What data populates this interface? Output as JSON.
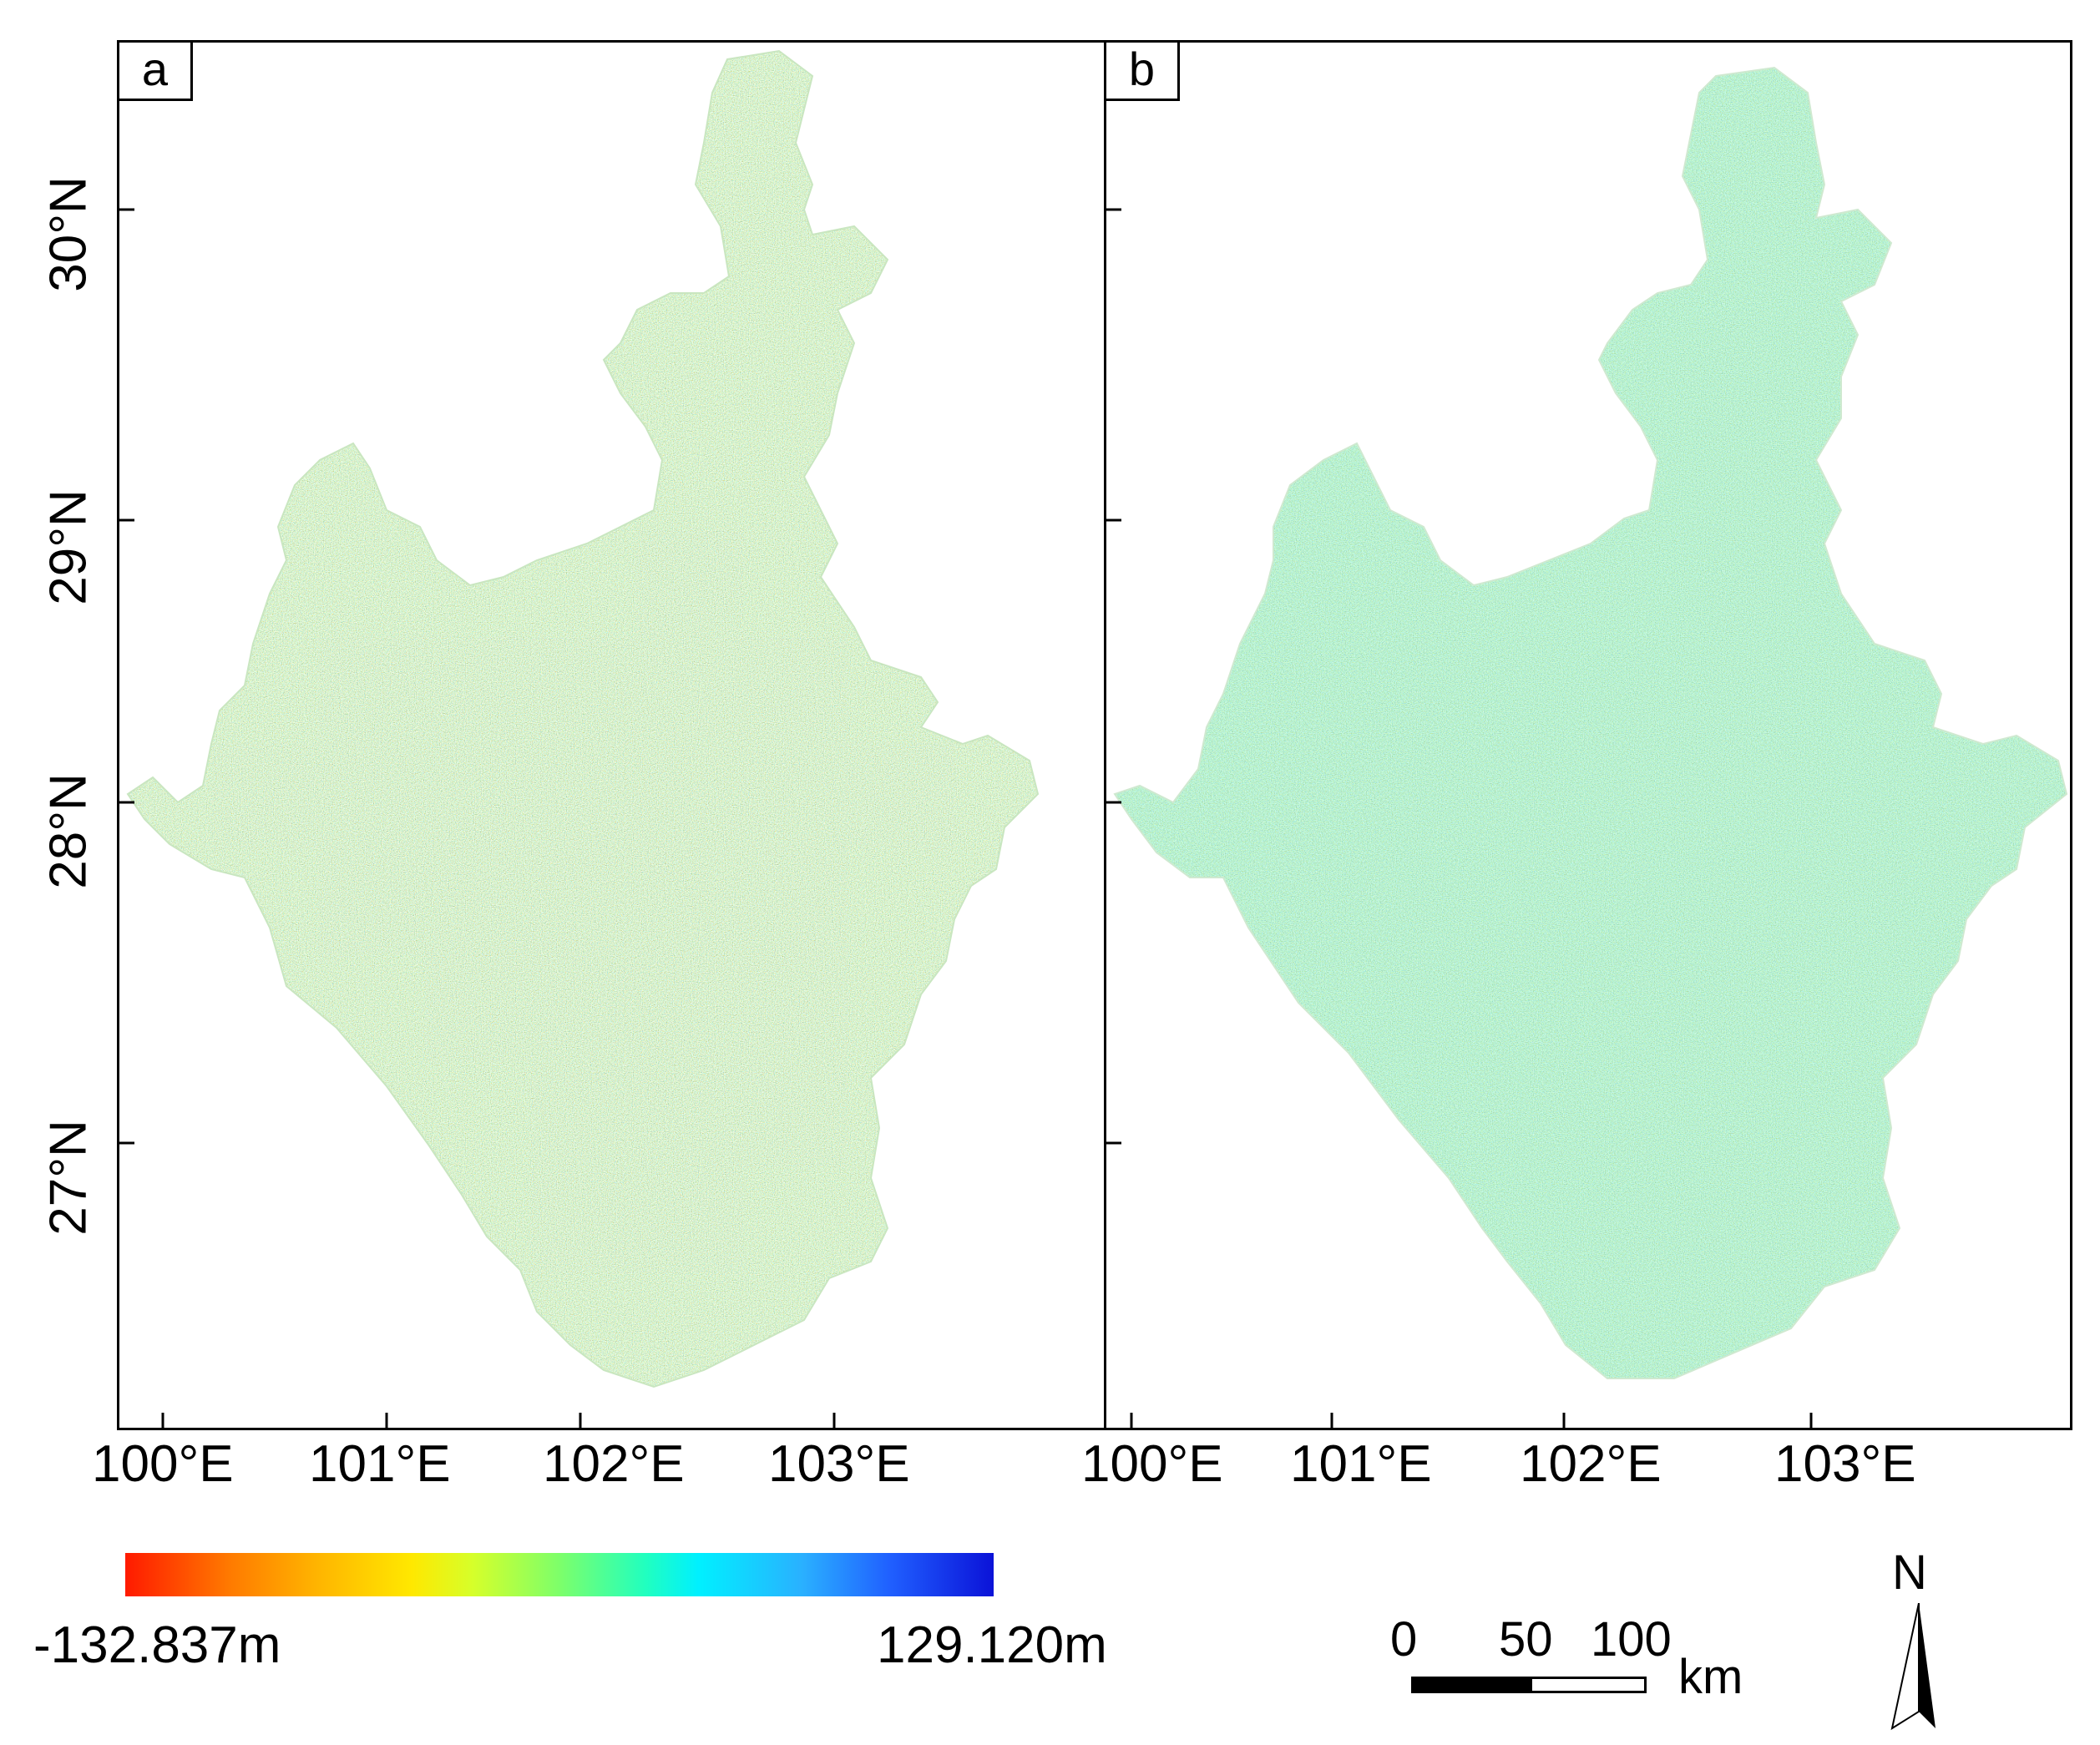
{
  "panels": [
    {
      "label": "a"
    },
    {
      "label": "b"
    }
  ],
  "latitudes": [
    "30°N",
    "29°N",
    "28°N",
    "27°N"
  ],
  "longitudes": [
    "100°E",
    "101°E",
    "102°E",
    "103°E"
  ],
  "legend": {
    "min_label": "-132.837m",
    "max_label": "129.120m",
    "colors": [
      "#ff1a00",
      "#ffb400",
      "#ffe800",
      "#7dff6a",
      "#00f0ff",
      "#2060ff",
      "#0b12d8"
    ]
  },
  "scale_bar": {
    "ticks": [
      "0",
      "50",
      "100"
    ],
    "unit": "km"
  },
  "north_arrow": {
    "label": "N"
  }
}
